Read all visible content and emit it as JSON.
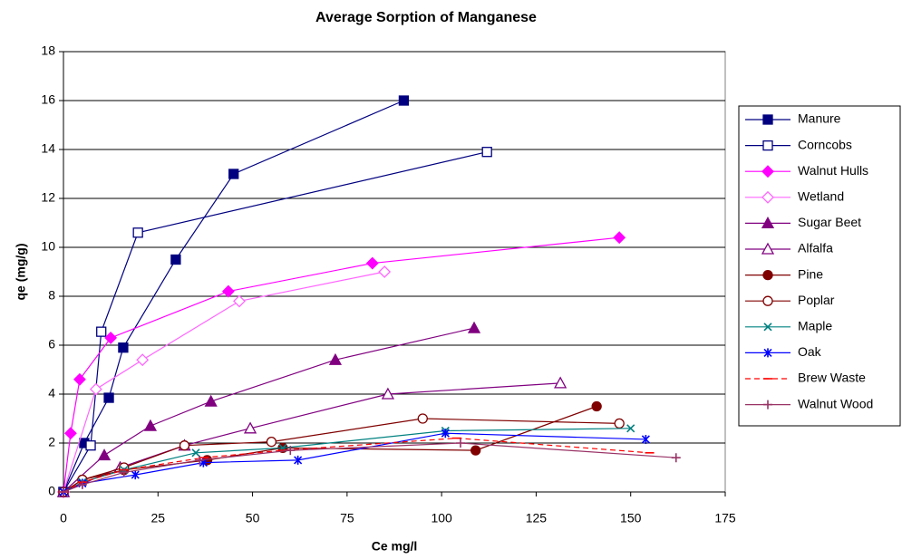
{
  "chart_data": {
    "type": "scatter-line",
    "title": "Average Sorption of Manganese",
    "x_label": "Ce mg/l",
    "y_label": "qe (mg/g)",
    "xlim": [
      0,
      175
    ],
    "xticks": [
      0,
      25,
      50,
      75,
      100,
      125,
      150,
      175
    ],
    "ylim": [
      0,
      18
    ],
    "yticks": [
      0,
      2,
      4,
      6,
      8,
      10,
      12,
      14,
      16,
      18
    ],
    "grid": true,
    "legend": "right",
    "series": [
      {
        "name": "Manure",
        "color": "#000080",
        "marker": "square",
        "x": [
          0,
          5.5,
          12,
          15.8,
          29.7,
          45,
          90
        ],
        "values": [
          0,
          2.0,
          3.85,
          5.9,
          9.5,
          13.0,
          16.0
        ]
      },
      {
        "name": "Corncobs",
        "color": "#000080",
        "marker": "square-open",
        "x": [
          0,
          7.2,
          10,
          19.7,
          112
        ],
        "values": [
          0,
          1.9,
          6.55,
          10.6,
          13.9
        ]
      },
      {
        "name": "Walnut Hulls",
        "color": "#ff00ff",
        "marker": "diamond",
        "x": [
          0,
          1.9,
          4.3,
          12.5,
          43.6,
          81.7,
          147
        ],
        "values": [
          0,
          2.4,
          4.6,
          6.3,
          8.2,
          9.35,
          10.4
        ]
      },
      {
        "name": "Wetland",
        "color": "#ff66ff",
        "marker": "diamond-open",
        "x": [
          0,
          8.6,
          20.9,
          46.5,
          84.9
        ],
        "values": [
          0,
          4.2,
          5.4,
          7.8,
          9.0
        ]
      },
      {
        "name": "Sugar Beet",
        "color": "#800080",
        "marker": "triangle",
        "x": [
          0,
          10.8,
          23,
          39,
          71.9,
          108.6
        ],
        "values": [
          0,
          1.5,
          2.7,
          3.7,
          5.4,
          6.7
        ]
      },
      {
        "name": "Alfalfa",
        "color": "#800080",
        "marker": "triangle-open",
        "x": [
          0,
          15,
          32,
          49.4,
          85.8,
          131.4
        ],
        "values": [
          0,
          1.0,
          1.9,
          2.6,
          4.0,
          4.45
        ]
      },
      {
        "name": "Pine",
        "color": "#800000",
        "marker": "circle",
        "x": [
          0,
          5,
          16,
          38,
          58,
          109,
          141
        ],
        "values": [
          0,
          0.5,
          0.9,
          1.3,
          1.8,
          1.7,
          3.5
        ]
      },
      {
        "name": "Poplar",
        "color": "#800000",
        "marker": "circle-open",
        "x": [
          0,
          5,
          16,
          32,
          55,
          95,
          147
        ],
        "values": [
          0,
          0.5,
          1.0,
          1.9,
          2.05,
          3.0,
          2.8
        ]
      },
      {
        "name": "Maple",
        "color": "#008080",
        "marker": "x",
        "x": [
          0,
          5,
          16,
          35,
          58,
          101,
          150
        ],
        "values": [
          0,
          0.4,
          0.9,
          1.6,
          1.8,
          2.5,
          2.6
        ]
      },
      {
        "name": "Oak",
        "color": "#0000ff",
        "marker": "star",
        "x": [
          0,
          5,
          19,
          37,
          62,
          101,
          154
        ],
        "values": [
          0,
          0.35,
          0.7,
          1.2,
          1.3,
          2.4,
          2.15
        ]
      },
      {
        "name": "Brew Waste",
        "color": "#ff0000",
        "marker": "dash",
        "dashed": true,
        "x": [
          0,
          5,
          16,
          37,
          58,
          104,
          155
        ],
        "values": [
          0,
          0.4,
          0.9,
          1.4,
          1.7,
          2.2,
          1.6
        ]
      },
      {
        "name": "Walnut Wood",
        "color": "#993366",
        "marker": "plus",
        "x": [
          0,
          5,
          16,
          36,
          60,
          105,
          162
        ],
        "values": [
          0,
          0.3,
          0.8,
          1.3,
          1.7,
          2.0,
          1.4
        ]
      }
    ]
  }
}
